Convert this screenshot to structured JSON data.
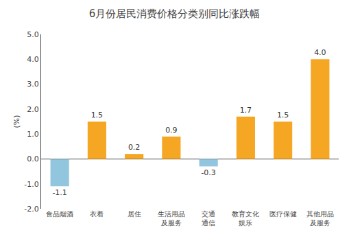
{
  "chart_data": {
    "type": "bar",
    "title": "6月份居民消费价格分类别同比涨跌幅",
    "ylabel": "(%)",
    "categories": [
      "食品烟酒",
      "衣着",
      "居住",
      "生活用品\n及服务",
      "交通\n通信",
      "教育文化\n娱乐",
      "医疗保健",
      "其他用品\n及服务"
    ],
    "values": [
      -1.1,
      1.5,
      0.2,
      0.9,
      -0.3,
      1.7,
      1.5,
      4.0
    ],
    "value_labels": [
      "-1.1",
      "1.5",
      "0.2",
      "0.9",
      "-0.3",
      "1.7",
      "1.5",
      "4.0"
    ],
    "colors": [
      "#92C5DE",
      "#F5A623",
      "#F5A623",
      "#F5A623",
      "#92C5DE",
      "#F5A623",
      "#F5A623",
      "#F5A623"
    ],
    "data_labels": true,
    "ylim": [
      -2.0,
      5.0
    ],
    "yticks": [
      {
        "value": -2.0,
        "label": "-2.0"
      },
      {
        "value": -1.0,
        "label": "-1.0"
      },
      {
        "value": 0.0,
        "label": "0.0"
      },
      {
        "value": 1.0,
        "label": "1.0"
      },
      {
        "value": 2.0,
        "label": "2.0"
      },
      {
        "value": 3.0,
        "label": "3.0"
      },
      {
        "value": 4.0,
        "label": "4.0"
      },
      {
        "value": 5.0,
        "label": "5.0"
      }
    ],
    "grid": false
  }
}
